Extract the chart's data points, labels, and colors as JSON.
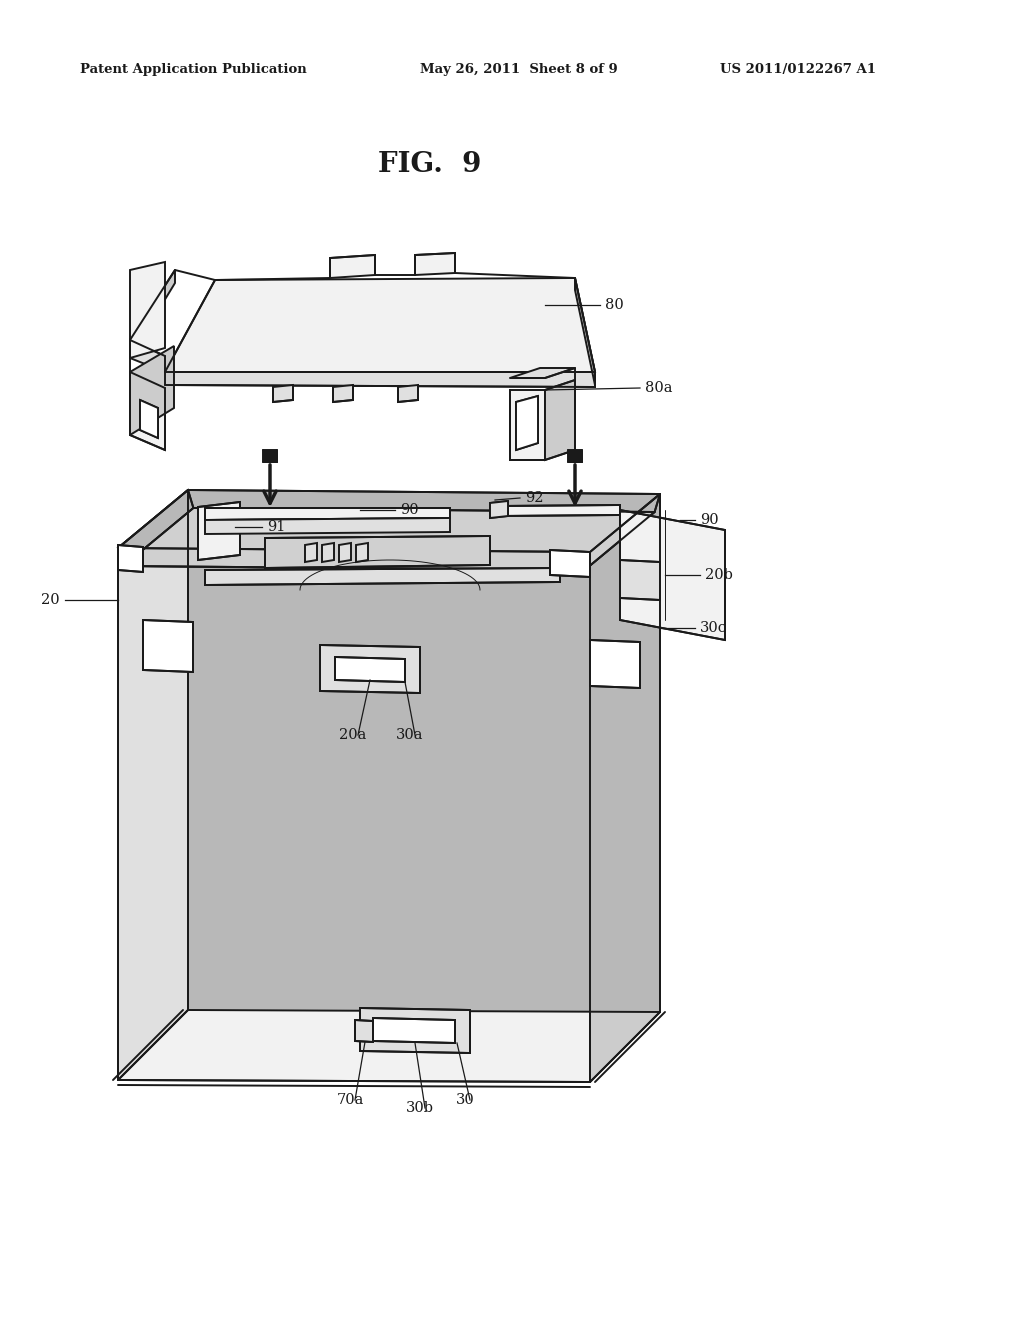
{
  "bg_color": "#ffffff",
  "line_color": "#1a1a1a",
  "lw_main": 1.4,
  "lw_thin": 0.7,
  "header_left": "Patent Application Publication",
  "header_center": "May 26, 2011  Sheet 8 of 9",
  "header_right": "US 2011/0122267 A1",
  "fig_label": "FIG.  9",
  "face_light": "#f2f2f2",
  "face_mid": "#e0e0e0",
  "face_dark": "#cccccc",
  "face_darker": "#b8b8b8",
  "face_interior": "#d0d0d0",
  "face_white": "#ffffff"
}
